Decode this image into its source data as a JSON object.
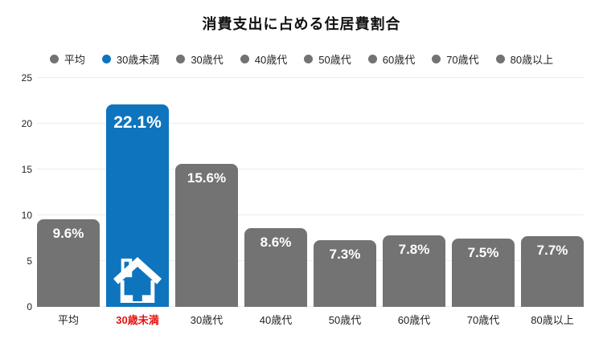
{
  "chart_data": {
    "type": "bar",
    "title": "消費支出に占める住居費割合",
    "categories": [
      "平均",
      "30歳未満",
      "30歳代",
      "40歳代",
      "50歳代",
      "60歳代",
      "70歳代",
      "80歳以上"
    ],
    "values": [
      9.6,
      22.1,
      15.6,
      8.6,
      7.3,
      7.8,
      7.5,
      7.7
    ],
    "value_labels": [
      "9.6%",
      "22.1%",
      "15.6%",
      "8.6%",
      "7.3%",
      "7.8%",
      "7.5%",
      "7.7%"
    ],
    "highlight_index": 1,
    "highlight_icon": "house-icon",
    "xlabel": "",
    "ylabel": "",
    "ylim": [
      0,
      25
    ],
    "yticks": [
      0,
      5,
      10,
      15,
      20,
      25
    ],
    "grid": true,
    "legend_position": "top"
  },
  "legend": {
    "items": [
      {
        "label": "平均",
        "color": "#737373"
      },
      {
        "label": "30歳未満",
        "color": "#0e74be"
      },
      {
        "label": "30歳代",
        "color": "#737373"
      },
      {
        "label": "40歳代",
        "color": "#737373"
      },
      {
        "label": "50歳代",
        "color": "#737373"
      },
      {
        "label": "60歳代",
        "color": "#737373"
      },
      {
        "label": "70歳代",
        "color": "#737373"
      },
      {
        "label": "80歳以上",
        "color": "#737373"
      }
    ]
  },
  "colors": {
    "bar_default": "#737373",
    "bar_highlight": "#0e74be",
    "value_text": "#ffffff",
    "xlabel_default": "#222222",
    "xlabel_highlight": "#e71212",
    "gridline": "#ececec",
    "title_text": "#111111"
  }
}
